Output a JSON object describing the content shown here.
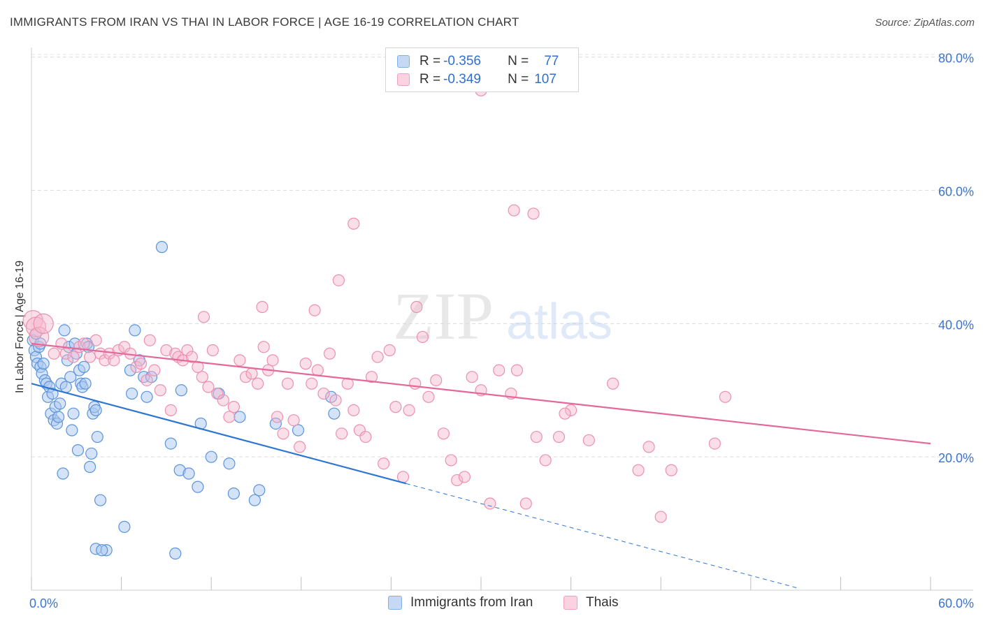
{
  "header": {
    "title": "IMMIGRANTS FROM IRAN VS THAI IN LABOR FORCE | AGE 16-19 CORRELATION CHART",
    "source": "Source: ZipAtlas.com"
  },
  "watermark": {
    "zip": "ZIP",
    "atlas": "atlas"
  },
  "legend": {
    "rows": [
      {
        "r_label": "R = ",
        "r_value": "-0.356",
        "n_label": "N = ",
        "n_value": "77",
        "color": "#7fb0ea"
      },
      {
        "r_label": "R = ",
        "r_value": "-0.349",
        "n_label": "N = ",
        "n_value": "107",
        "color": "#f2a0bb"
      }
    ]
  },
  "bottom_legend": [
    {
      "label": "Immigrants from Iran",
      "color": "#7fb0ea"
    },
    {
      "label": "Thais",
      "color": "#f2a0bb"
    }
  ],
  "chart_data": {
    "type": "scatter",
    "title": "IMMIGRANTS FROM IRAN VS THAI IN LABOR FORCE | AGE 16-19 CORRELATION CHART",
    "xlabel": "",
    "ylabel": "In Labor Force | Age 16-19",
    "xlim": [
      0,
      60
    ],
    "ylim": [
      0,
      80
    ],
    "x_tick_labels": [
      "0.0%",
      "60.0%"
    ],
    "y_tick_labels": [
      "20.0%",
      "40.0%",
      "60.0%",
      "80.0%"
    ],
    "y_ticks": [
      20,
      40,
      60,
      80
    ],
    "grid": true,
    "legend_position": "top-center",
    "colors": {
      "iran": "#3b7dd8",
      "thai": "#e8709a"
    },
    "series": [
      {
        "name": "Immigrants from Iran",
        "r": -0.356,
        "n": 77,
        "trend": {
          "x0": 0,
          "y0": 31.0,
          "x1": 25,
          "y1": 16.0,
          "dash_to_x": 51.2
        },
        "points": [
          [
            0.1,
            37.5
          ],
          [
            0.2,
            36.0
          ],
          [
            0.3,
            35.0
          ],
          [
            0.4,
            34.0
          ],
          [
            0.5,
            36.5
          ],
          [
            0.6,
            33.5
          ],
          [
            0.7,
            32.5
          ],
          [
            0.8,
            34.0
          ],
          [
            0.9,
            31.5
          ],
          [
            1.0,
            31.0
          ],
          [
            1.1,
            29.0
          ],
          [
            1.2,
            30.5
          ],
          [
            1.3,
            26.5
          ],
          [
            1.4,
            29.5
          ],
          [
            1.5,
            25.5
          ],
          [
            1.6,
            27.5
          ],
          [
            1.7,
            25.0
          ],
          [
            1.8,
            26.0
          ],
          [
            1.9,
            28.0
          ],
          [
            2.0,
            31.0
          ],
          [
            2.1,
            17.5
          ],
          [
            2.2,
            39.0
          ],
          [
            2.3,
            30.5
          ],
          [
            2.4,
            34.5
          ],
          [
            2.5,
            36.5
          ],
          [
            2.6,
            32.0
          ],
          [
            2.7,
            24.0
          ],
          [
            2.8,
            26.5
          ],
          [
            2.9,
            37.0
          ],
          [
            3.0,
            35.5
          ],
          [
            3.1,
            21.0
          ],
          [
            3.2,
            33.0
          ],
          [
            3.3,
            31.0
          ],
          [
            3.4,
            30.5
          ],
          [
            3.5,
            33.5
          ],
          [
            3.6,
            31.0
          ],
          [
            3.7,
            37.0
          ],
          [
            3.8,
            36.5
          ],
          [
            3.9,
            18.5
          ],
          [
            4.0,
            20.5
          ],
          [
            4.1,
            26.5
          ],
          [
            4.2,
            27.5
          ],
          [
            4.3,
            27.0
          ],
          [
            4.4,
            23.0
          ],
          [
            4.6,
            13.5
          ],
          [
            5.0,
            6.0
          ],
          [
            4.3,
            6.2
          ],
          [
            4.7,
            6.0
          ],
          [
            6.2,
            9.5
          ],
          [
            6.6,
            33.0
          ],
          [
            6.7,
            29.5
          ],
          [
            6.9,
            39.0
          ],
          [
            7.2,
            34.5
          ],
          [
            7.5,
            32.0
          ],
          [
            7.7,
            29.0
          ],
          [
            8.0,
            32.0
          ],
          [
            8.7,
            51.5
          ],
          [
            9.3,
            22.0
          ],
          [
            9.6,
            5.5
          ],
          [
            9.9,
            18.0
          ],
          [
            10.0,
            30.0
          ],
          [
            10.5,
            17.5
          ],
          [
            11.1,
            15.5
          ],
          [
            11.3,
            25.0
          ],
          [
            12.0,
            20.0
          ],
          [
            12.5,
            29.5
          ],
          [
            13.2,
            19.0
          ],
          [
            13.5,
            14.5
          ],
          [
            13.9,
            26.0
          ],
          [
            14.9,
            13.5
          ],
          [
            15.2,
            15.0
          ],
          [
            16.3,
            25.0
          ],
          [
            17.8,
            24.0
          ],
          [
            20.0,
            29.0
          ],
          [
            20.2,
            26.5
          ],
          [
            0.3,
            38.5
          ],
          [
            0.6,
            37.0
          ]
        ]
      },
      {
        "name": "Thais",
        "r": -0.349,
        "n": 107,
        "trend": {
          "x0": 0,
          "y0": 37.0,
          "x1": 60,
          "y1": 22.0
        },
        "points": [
          [
            0.1,
            40.5
          ],
          [
            0.3,
            39.5
          ],
          [
            0.5,
            38.0
          ],
          [
            0.8,
            40.0
          ],
          [
            1.5,
            35.5
          ],
          [
            2.0,
            37.0
          ],
          [
            2.3,
            35.5
          ],
          [
            2.8,
            35.0
          ],
          [
            3.2,
            36.5
          ],
          [
            3.5,
            37.0
          ],
          [
            3.9,
            35.0
          ],
          [
            4.3,
            37.5
          ],
          [
            4.6,
            35.5
          ],
          [
            4.9,
            34.5
          ],
          [
            5.2,
            35.5
          ],
          [
            5.5,
            34.5
          ],
          [
            5.8,
            36.0
          ],
          [
            6.2,
            36.5
          ],
          [
            6.6,
            35.5
          ],
          [
            7.0,
            33.5
          ],
          [
            7.3,
            34.0
          ],
          [
            7.7,
            31.5
          ],
          [
            7.9,
            37.5
          ],
          [
            8.2,
            33.0
          ],
          [
            8.6,
            30.0
          ],
          [
            9.0,
            36.0
          ],
          [
            9.3,
            27.0
          ],
          [
            9.6,
            35.5
          ],
          [
            9.8,
            35.0
          ],
          [
            10.1,
            34.5
          ],
          [
            10.4,
            36.0
          ],
          [
            10.7,
            35.0
          ],
          [
            11.1,
            33.5
          ],
          [
            11.4,
            32.0
          ],
          [
            11.8,
            30.5
          ],
          [
            12.1,
            36.0
          ],
          [
            12.4,
            29.5
          ],
          [
            12.8,
            28.5
          ],
          [
            13.2,
            26.0
          ],
          [
            13.5,
            27.5
          ],
          [
            13.9,
            34.5
          ],
          [
            14.3,
            32.0
          ],
          [
            14.7,
            32.5
          ],
          [
            15.1,
            31.0
          ],
          [
            15.5,
            36.5
          ],
          [
            15.8,
            33.0
          ],
          [
            16.1,
            34.5
          ],
          [
            16.4,
            26.0
          ],
          [
            16.8,
            23.5
          ],
          [
            17.1,
            31.0
          ],
          [
            17.5,
            25.5
          ],
          [
            17.9,
            21.5
          ],
          [
            18.3,
            34.0
          ],
          [
            18.7,
            31.0
          ],
          [
            19.1,
            33.0
          ],
          [
            19.5,
            29.5
          ],
          [
            19.9,
            35.5
          ],
          [
            20.3,
            28.5
          ],
          [
            20.7,
            23.5
          ],
          [
            21.1,
            31.0
          ],
          [
            21.5,
            27.0
          ],
          [
            21.9,
            24.0
          ],
          [
            22.3,
            23.0
          ],
          [
            22.7,
            32.0
          ],
          [
            23.1,
            35.0
          ],
          [
            23.5,
            19.0
          ],
          [
            23.9,
            36.0
          ],
          [
            24.3,
            27.5
          ],
          [
            24.8,
            17.0
          ],
          [
            25.2,
            27.0
          ],
          [
            25.6,
            31.0
          ],
          [
            26.1,
            38.0
          ],
          [
            26.5,
            29.0
          ],
          [
            27.0,
            31.5
          ],
          [
            27.5,
            23.5
          ],
          [
            28.0,
            19.5
          ],
          [
            28.4,
            16.5
          ],
          [
            28.9,
            17.0
          ],
          [
            29.4,
            32.0
          ],
          [
            30.0,
            30.0
          ],
          [
            30.6,
            13.0
          ],
          [
            31.2,
            33.0
          ],
          [
            32.4,
            33.0
          ],
          [
            33.0,
            13.0
          ],
          [
            33.7,
            23.0
          ],
          [
            34.3,
            19.5
          ],
          [
            35.2,
            23.0
          ],
          [
            36.0,
            27.0
          ],
          [
            37.2,
            22.5
          ],
          [
            38.8,
            31.0
          ],
          [
            40.5,
            18.0
          ],
          [
            41.2,
            21.5
          ],
          [
            42.0,
            11.0
          ],
          [
            42.7,
            18.0
          ],
          [
            45.6,
            22.0
          ],
          [
            46.3,
            29.0
          ],
          [
            25.7,
            42.5
          ],
          [
            20.5,
            46.5
          ],
          [
            21.5,
            55.0
          ],
          [
            32.2,
            57.0
          ],
          [
            33.5,
            56.5
          ],
          [
            30.0,
            75.0
          ],
          [
            15.4,
            42.5
          ],
          [
            18.9,
            42.0
          ],
          [
            11.5,
            41.0
          ],
          [
            32.0,
            29.5
          ],
          [
            35.6,
            26.5
          ]
        ]
      }
    ]
  }
}
